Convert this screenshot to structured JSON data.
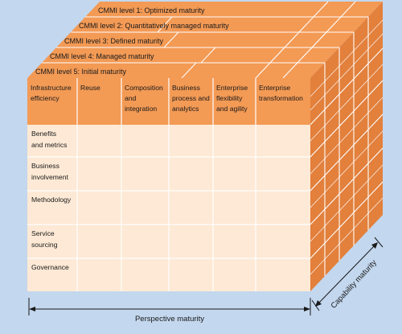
{
  "levels": [
    "CMMI level 1: Optimized maturity",
    "CMMI level 2: Quantitatively managed maturity",
    "CMMI level 3: Defined maturity",
    "CMMI level 4: Managed maturity",
    "CMMI level 5: Initial maturity"
  ],
  "columns": [
    [
      "Infrastructure",
      "efficiency"
    ],
    [
      "Reuse"
    ],
    [
      "Composition",
      "and",
      "integration"
    ],
    [
      "Business",
      "process and",
      "analytics"
    ],
    [
      "Enterprise",
      "flexibility",
      "and agility"
    ],
    [
      "Enterprise",
      "transformation"
    ]
  ],
  "rows": [
    [
      "Benefits",
      "and metrics"
    ],
    [
      "Business",
      "involvement"
    ],
    [
      "Methodology"
    ],
    [
      "Service",
      "sourcing"
    ],
    [
      "Governance"
    ]
  ],
  "axes": {
    "perspective": "Perspective maturity",
    "capability": "Capability maturity"
  },
  "colors": {
    "background": "#c3d7ee",
    "face": "#fde9d5",
    "orange": "#f39a55",
    "orange_dark": "#e2803c",
    "grid": "#ffffff"
  }
}
